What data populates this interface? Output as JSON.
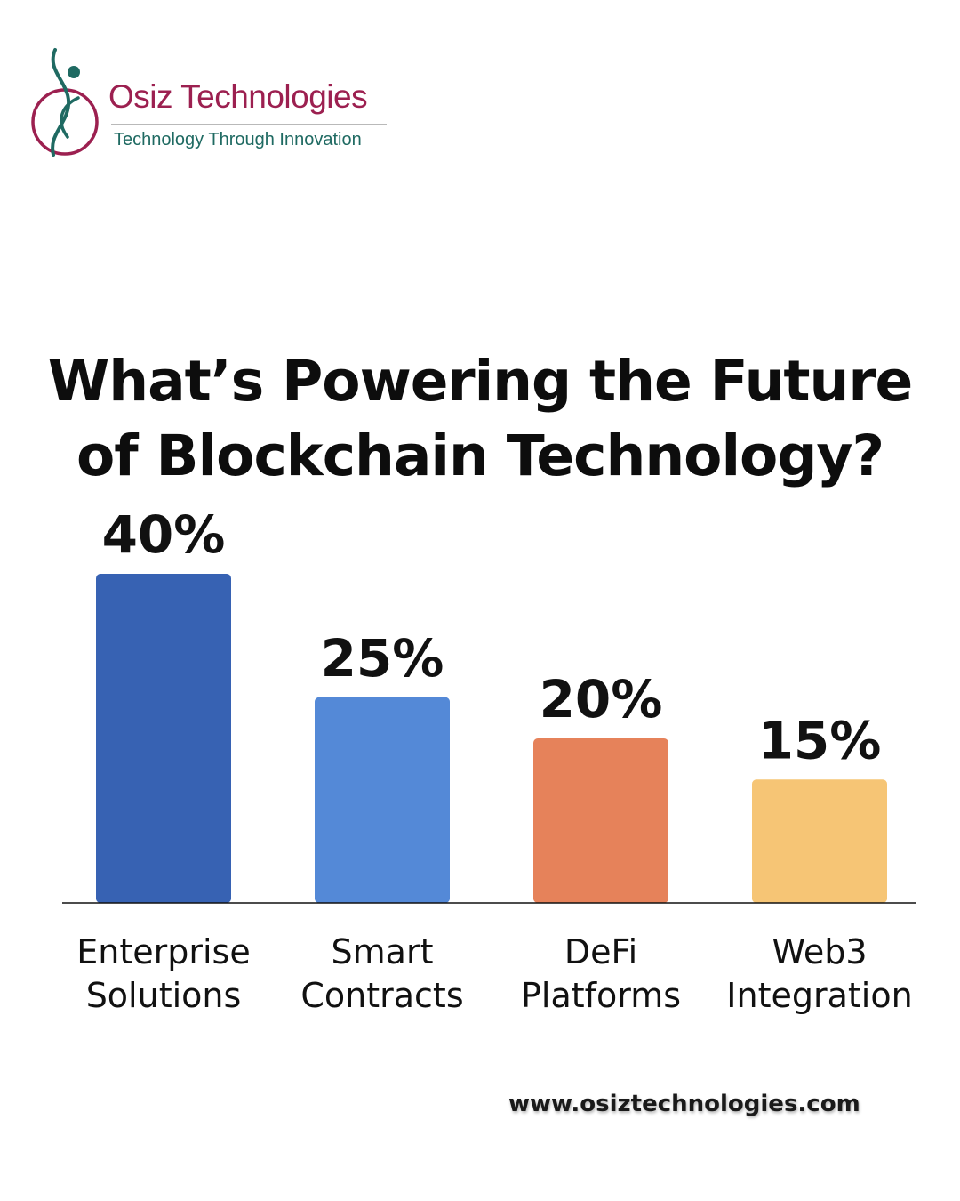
{
  "brand": {
    "name": "Osiz Technologies",
    "tagline": "Technology Through Innovation",
    "colors": {
      "name": "#9c2050",
      "tagline": "#1f6a62",
      "emblem_ring": "#9c2050",
      "emblem_figure": "#1f6a62"
    }
  },
  "title": {
    "line1": "What’s Powering the Future",
    "line2": "of Blockchain Technology?"
  },
  "chart_data": {
    "type": "bar",
    "title": "What’s Powering the Future of Blockchain Technology?",
    "categories": [
      [
        "Enterprise",
        "Solutions"
      ],
      [
        "Smart",
        "Contracts"
      ],
      [
        "DeFi",
        "Platforms"
      ],
      [
        "Web3",
        "Integration"
      ]
    ],
    "values": [
      40,
      25,
      20,
      15
    ],
    "value_labels": [
      "40%",
      "25%",
      "20%",
      "15%"
    ],
    "colors": [
      "#3762b3",
      "#5489d7",
      "#e6825a",
      "#f6c575"
    ],
    "ylim": [
      0,
      40
    ],
    "xlabel": "",
    "ylabel": "",
    "grid": false,
    "legend": "none"
  },
  "footer": {
    "website": "www.osiztechnologies.com"
  }
}
